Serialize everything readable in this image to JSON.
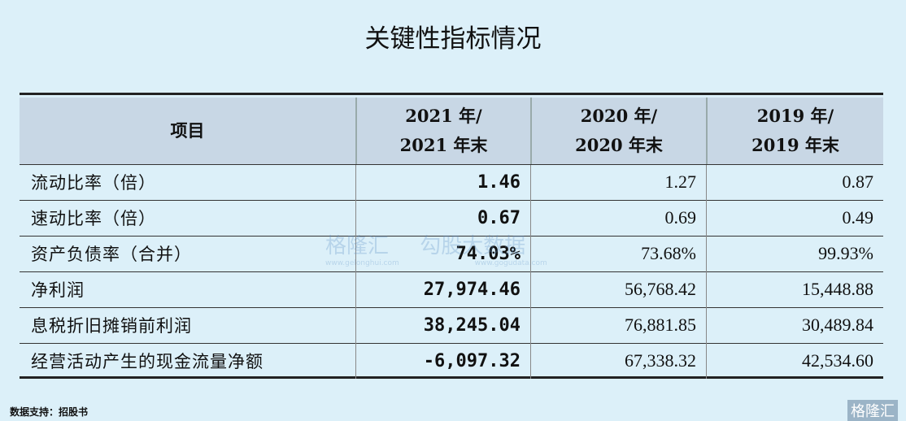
{
  "title": "关键性指标情况",
  "table": {
    "header": [
      [
        "项目"
      ],
      [
        "2021 年/",
        "2021 年末"
      ],
      [
        "2020 年/",
        "2020 年末"
      ],
      [
        "2019 年/",
        "2019 年末"
      ]
    ],
    "rows": [
      [
        "流动比率（倍）",
        "1.46",
        "1.27",
        "0.87"
      ],
      [
        "速动比率（倍）",
        "0.67",
        "0.69",
        "0.49"
      ],
      [
        "资产负债率（合并）",
        "74.03%",
        "73.68%",
        "99.93%"
      ],
      [
        "净利润",
        "27,974.46",
        "56,768.42",
        "15,448.88"
      ],
      [
        "息税折旧摊销前利润",
        "38,245.04",
        "76,881.85",
        "30,489.84"
      ],
      [
        "经营活动产生的现金流量净额",
        "-6,097.32",
        "67,338.32",
        "42,534.60"
      ]
    ]
  },
  "watermark": [
    "格隆汇",
    "www.gelonghui.com",
    "勾股大数据",
    "www.gogudata.com"
  ],
  "footer": {
    "source": "数据支持：招股书",
    "logo": "格隆汇"
  }
}
